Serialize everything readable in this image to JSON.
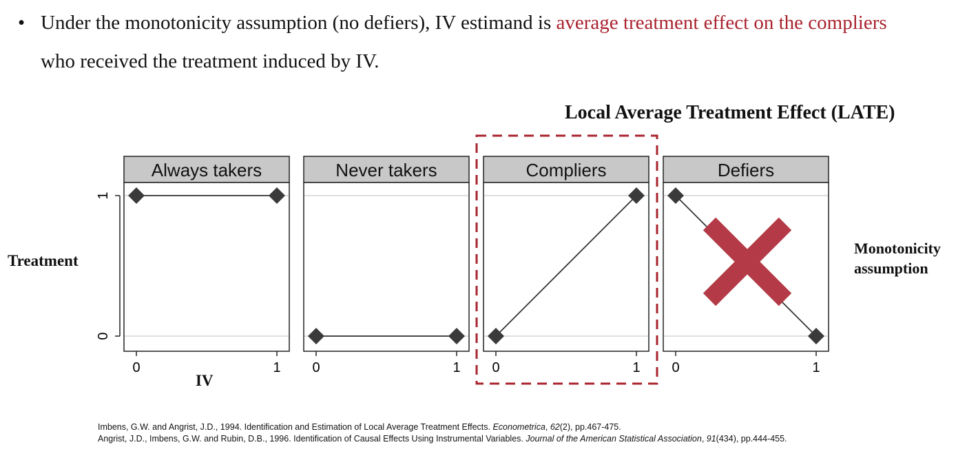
{
  "bullet": {
    "text_before": "Under the monotonicity assumption (no defiers), IV estimand is ",
    "text_highlight": "average treatment effect on the compliers",
    "text_line2": "who received the treatment induced by IV.",
    "highlight_color": "#a8232e"
  },
  "late_title": "Local Average Treatment Effect (LATE)",
  "monotonicity_label_line1": "Monotonicity",
  "monotonicity_label_line2": "assumption",
  "chart_data": {
    "type": "line",
    "ylabel": "Treatment",
    "xlabel": "IV",
    "xlim": [
      0,
      1
    ],
    "ylim": [
      0,
      1
    ],
    "x_ticks": [
      "0",
      "1"
    ],
    "y_ticks": [
      "0",
      "1"
    ],
    "panels": [
      {
        "title": "Always takers",
        "x": [
          0,
          1
        ],
        "y": [
          1,
          1
        ],
        "crossed_out": false
      },
      {
        "title": "Never takers",
        "x": [
          0,
          1
        ],
        "y": [
          0,
          0
        ],
        "crossed_out": false
      },
      {
        "title": "Compliers",
        "x": [
          0,
          1
        ],
        "y": [
          0,
          1
        ],
        "crossed_out": false,
        "highlighted": true
      },
      {
        "title": "Defiers",
        "x": [
          0,
          1
        ],
        "y": [
          1,
          0
        ],
        "crossed_out": true
      }
    ],
    "colors": {
      "marker": "#3a3a3a",
      "line": "#333333",
      "header_bg": "#c8c8c8",
      "grid": "#dedede",
      "highlight_box": "#a8232e",
      "cross": "#b33a46"
    }
  },
  "references": [
    {
      "before": "Imbens, G.W. and Angrist, J.D., 1994. Identification and Estimation of Local Average Treatment Effects. ",
      "journal": "Econometrica",
      "sep": ", ",
      "volume": "62",
      "after": "(2), pp.467-475."
    },
    {
      "before": "Angrist, J.D., Imbens, G.W. and Rubin, D.B., 1996. Identification of Causal Effects Using Instrumental Variables. ",
      "journal": "Journal of the American Statistical Association",
      "sep": ", ",
      "volume": "91",
      "after": "(434), pp.444-455."
    }
  ]
}
